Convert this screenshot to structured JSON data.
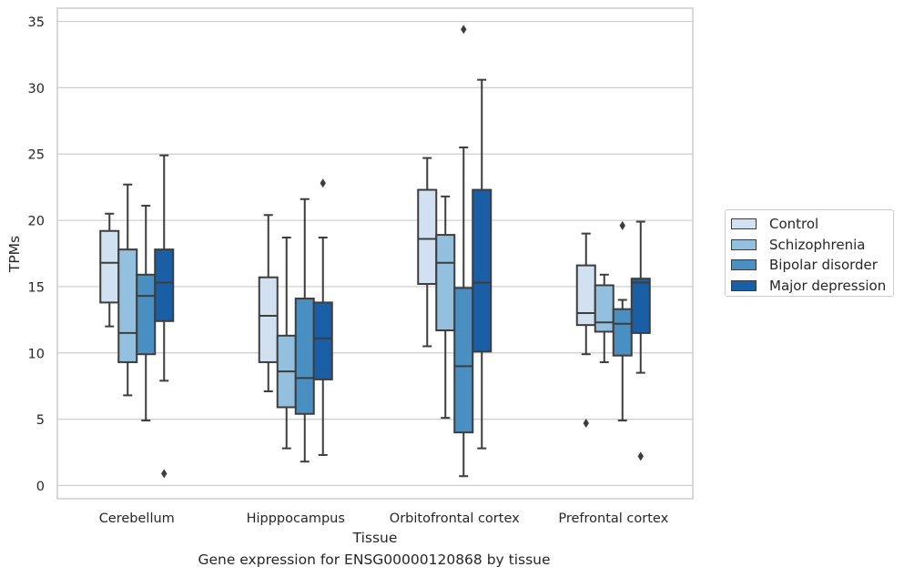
{
  "chart_data": {
    "type": "box",
    "title": "",
    "caption": "Gene expression for ENSG00000120868 by tissue",
    "xlabel": "Tissue",
    "ylabel": "TPMs",
    "ylim": [
      -1,
      36
    ],
    "yticks": [
      0,
      5,
      10,
      15,
      20,
      25,
      30,
      35
    ],
    "grid": "horizontal",
    "legend_position": "right",
    "categories": [
      "Cerebellum",
      "Hipppocampus",
      "Orbitofrontal cortex",
      "Prefrontal cortex"
    ],
    "series": [
      {
        "name": "Control",
        "color": "#d1e1f1",
        "boxes": [
          {
            "whislo": 12.0,
            "q1": 13.8,
            "med": 16.8,
            "q3": 19.2,
            "whishi": 20.5,
            "fliers": []
          },
          {
            "whislo": 7.1,
            "q1": 9.3,
            "med": 12.8,
            "q3": 15.7,
            "whishi": 20.4,
            "fliers": []
          },
          {
            "whislo": 10.5,
            "q1": 15.2,
            "med": 18.6,
            "q3": 22.3,
            "whishi": 24.7,
            "fliers": []
          },
          {
            "whislo": 9.9,
            "q1": 12.1,
            "med": 13.0,
            "q3": 16.6,
            "whishi": 19.0,
            "fliers": [
              4.7
            ]
          }
        ]
      },
      {
        "name": "Schizophrenia",
        "color": "#93c0de",
        "boxes": [
          {
            "whislo": 6.8,
            "q1": 9.3,
            "med": 11.5,
            "q3": 17.8,
            "whishi": 22.7,
            "fliers": []
          },
          {
            "whislo": 2.8,
            "q1": 5.9,
            "med": 8.6,
            "q3": 11.3,
            "whishi": 18.7,
            "fliers": []
          },
          {
            "whislo": 5.1,
            "q1": 11.7,
            "med": 16.8,
            "q3": 18.9,
            "whishi": 21.8,
            "fliers": []
          },
          {
            "whislo": 9.3,
            "q1": 11.6,
            "med": 12.3,
            "q3": 15.1,
            "whishi": 15.9,
            "fliers": []
          }
        ]
      },
      {
        "name": "Bipolar disorder",
        "color": "#4a8fc2",
        "boxes": [
          {
            "whislo": 4.9,
            "q1": 9.9,
            "med": 14.3,
            "q3": 15.9,
            "whishi": 21.1,
            "fliers": []
          },
          {
            "whislo": 1.8,
            "q1": 5.4,
            "med": 8.1,
            "q3": 14.1,
            "whishi": 21.6,
            "fliers": []
          },
          {
            "whislo": 0.7,
            "q1": 4.0,
            "med": 9.0,
            "q3": 14.9,
            "whishi": 25.5,
            "fliers": [
              34.4
            ]
          },
          {
            "whislo": 4.9,
            "q1": 9.8,
            "med": 12.2,
            "q3": 13.3,
            "whishi": 14.0,
            "fliers": [
              19.6
            ]
          }
        ]
      },
      {
        "name": "Major depression",
        "color": "#1a5fa6",
        "boxes": [
          {
            "whislo": 7.9,
            "q1": 12.4,
            "med": 15.3,
            "q3": 17.8,
            "whishi": 24.9,
            "fliers": [
              0.9
            ]
          },
          {
            "whislo": 2.3,
            "q1": 8.0,
            "med": 11.1,
            "q3": 13.8,
            "whishi": 18.7,
            "fliers": [
              22.8
            ]
          },
          {
            "whislo": 2.8,
            "q1": 10.1,
            "med": 15.3,
            "q3": 22.3,
            "whishi": 30.6,
            "fliers": []
          },
          {
            "whislo": 8.5,
            "q1": 11.5,
            "med": 15.3,
            "q3": 15.6,
            "whishi": 19.9,
            "fliers": [
              2.2
            ]
          }
        ]
      }
    ]
  }
}
